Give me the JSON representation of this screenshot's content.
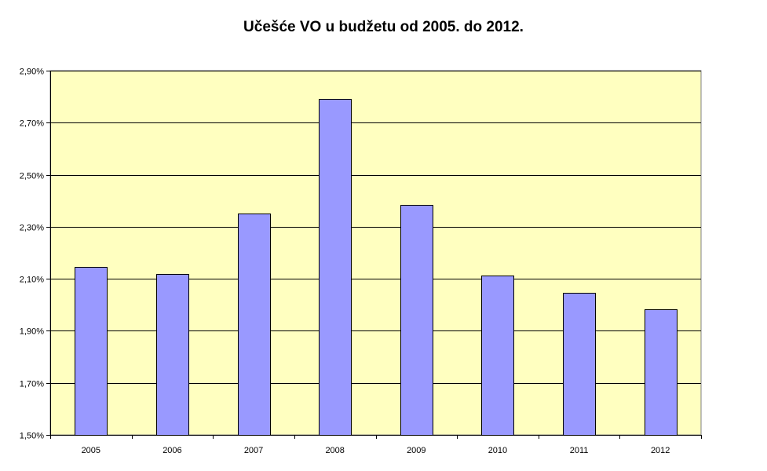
{
  "chart_data": {
    "type": "bar",
    "title": "Učešće VO u budžetu od 2005. do 2012.",
    "xlabel": "",
    "ylabel": "",
    "categories": [
      "2005",
      "2006",
      "2007",
      "2008",
      "2009",
      "2010",
      "2011",
      "2012"
    ],
    "values": [
      2.147,
      2.12,
      2.352,
      2.79,
      2.383,
      2.113,
      2.045,
      1.983
    ],
    "value_unit": "%",
    "ylim": [
      1.5,
      2.9
    ],
    "yticks": [
      1.5,
      1.7,
      1.9,
      2.1,
      2.3,
      2.5,
      2.7,
      2.9
    ],
    "ytick_labels": [
      "1,50%",
      "1,70%",
      "1,90%",
      "2,10%",
      "2,30%",
      "2,50%",
      "2,70%",
      "2,90%"
    ],
    "grid": true,
    "legend": "none",
    "colors": {
      "bar_fill": "#9999ff",
      "bar_stroke": "#000000",
      "plot_background": "#ffffc0",
      "gridline": "#000000"
    }
  }
}
